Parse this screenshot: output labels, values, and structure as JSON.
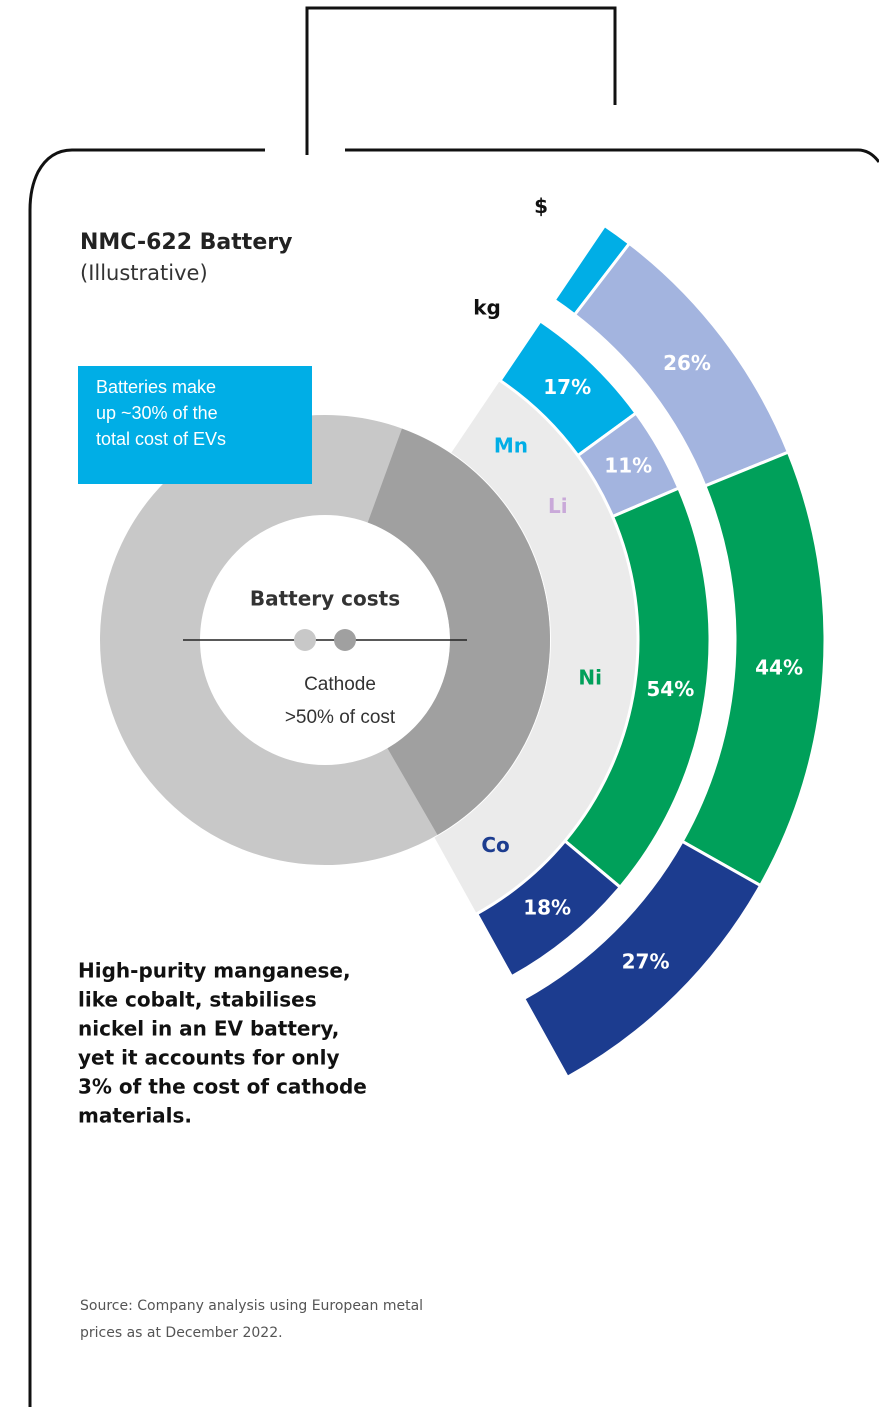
{
  "title": "NMC-622 Battery",
  "subtitle": "(Illustrative)",
  "callout": [
    "Batteries make",
    "up ~30% of the",
    "total cost of EVs"
  ],
  "donut": {
    "label": "Battery costs",
    "note": [
      "Cathode",
      ">50% of cost"
    ]
  },
  "rings": [
    {
      "name": "kg",
      "segments": [
        {
          "element": "Mn",
          "value": 17,
          "value_label": "17%",
          "color": "#00aee6",
          "label_color": "#00aee6"
        },
        {
          "element": "Li",
          "value": 11,
          "value_label": "11%",
          "color": "#a3b4df",
          "label_color": "#c9a9d9"
        },
        {
          "element": "Ni",
          "value": 54,
          "value_label": "54%",
          "color": "#00a05a",
          "label_color": "#00a05a"
        },
        {
          "element": "Co",
          "value": 18,
          "value_label": "18%",
          "color": "#1c3c8f",
          "label_color": "#1c3c8f"
        }
      ]
    },
    {
      "name": "$",
      "segments": [
        {
          "element": "Mn",
          "value": 3,
          "value_label": "3%",
          "color": "#00aee6"
        },
        {
          "element": "Li",
          "value": 26,
          "value_label": "26%",
          "color": "#a3b4df"
        },
        {
          "element": "Ni",
          "value": 44,
          "value_label": "44%",
          "color": "#00a05a"
        },
        {
          "element": "Co",
          "value": 27,
          "value_label": "27%",
          "color": "#1c3c8f"
        }
      ]
    }
  ],
  "body": [
    "High-purity manganese,",
    "like cobalt, stabilises",
    "nickel in an EV battery,",
    "yet it accounts for only",
    "3% of the cost of cathode",
    "materials."
  ],
  "source": [
    "Source: Company analysis using European metal",
    "prices as at December 2022."
  ]
}
